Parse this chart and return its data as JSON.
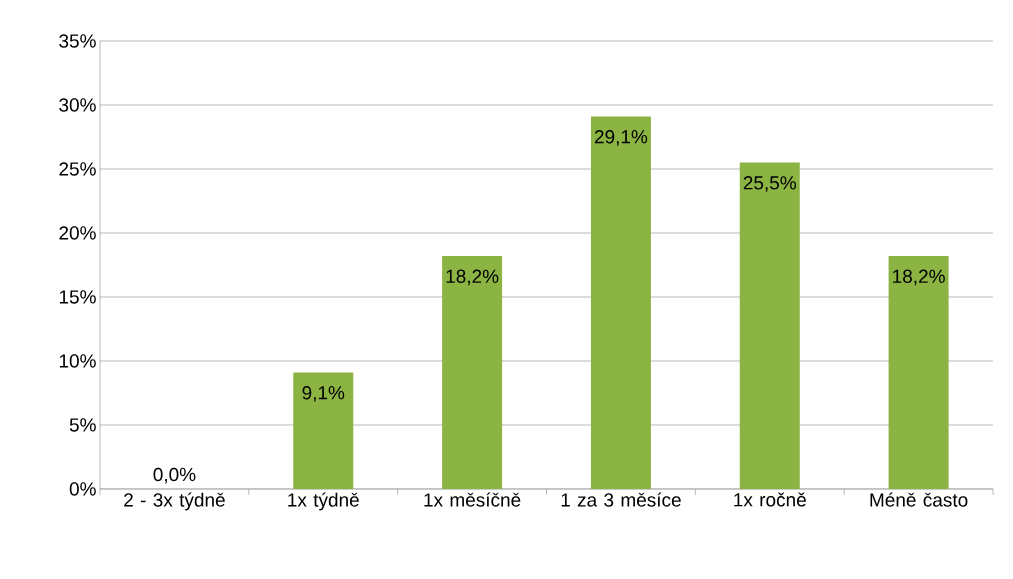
{
  "chart_data": {
    "type": "bar",
    "categories": [
      "2 - 3x týdně",
      "1x týdně",
      "1x měsíčně",
      "1 za 3 měsíce",
      "1x ročně",
      "Méně často"
    ],
    "values": [
      0,
      9.1,
      18.2,
      29.1,
      25.5,
      18.2
    ],
    "value_labels": [
      "0,0%",
      "9,1%",
      "18,2%",
      "29,1%",
      "25,5%",
      "18,2%"
    ],
    "color": "#8cb443",
    "ylim": [
      0,
      35
    ],
    "yticks": [
      {
        "value": 0,
        "label": "0%"
      },
      {
        "value": 5,
        "label": "5%"
      },
      {
        "value": 10,
        "label": "10%"
      },
      {
        "value": 15,
        "label": "15%"
      },
      {
        "value": 20,
        "label": "20%"
      },
      {
        "value": 25,
        "label": "25%"
      },
      {
        "value": 30,
        "label": "30%"
      },
      {
        "value": 35,
        "label": "35%"
      }
    ],
    "grid": "y"
  }
}
